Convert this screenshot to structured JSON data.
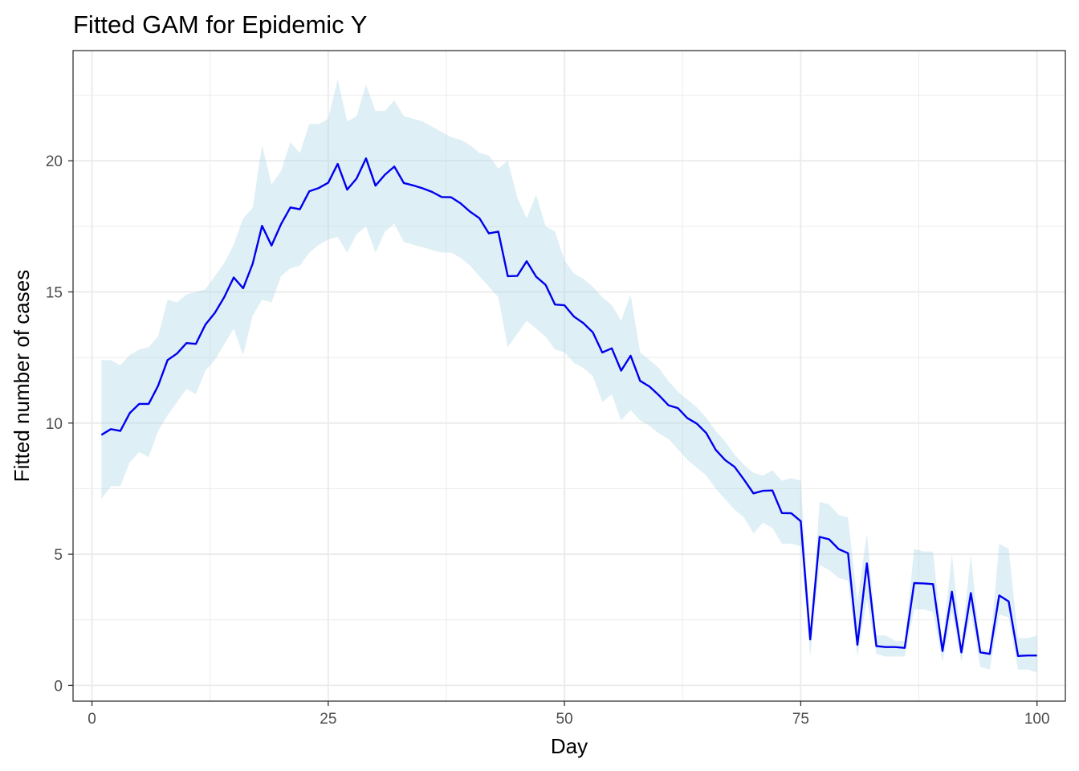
{
  "chart_data": {
    "type": "line",
    "title": "Fitted GAM for Epidemic Y",
    "xlabel": "Day",
    "ylabel": "Fitted number of cases",
    "xlim": [
      -2,
      103
    ],
    "ylim": [
      -0.6,
      24.2
    ],
    "x_ticks": [
      0,
      25,
      50,
      75,
      100
    ],
    "y_ticks": [
      0,
      5,
      10,
      15,
      20
    ],
    "grid": true,
    "legend": "none",
    "colors": {
      "line": "#0000ee",
      "ribbon": "#add8e6",
      "grid": "#ebebeb",
      "panel_border": "#333333"
    },
    "x": [
      1,
      2,
      3,
      4,
      5,
      6,
      7,
      8,
      9,
      10,
      11,
      12,
      13,
      14,
      15,
      16,
      17,
      18,
      19,
      20,
      21,
      22,
      23,
      24,
      25,
      26,
      27,
      28,
      29,
      30,
      31,
      32,
      33,
      34,
      35,
      36,
      37,
      38,
      39,
      40,
      41,
      42,
      43,
      44,
      45,
      46,
      47,
      48,
      49,
      50,
      51,
      52,
      53,
      54,
      55,
      56,
      57,
      58,
      59,
      60,
      61,
      62,
      63,
      64,
      65,
      66,
      67,
      68,
      69,
      70,
      71,
      72,
      73,
      74,
      75,
      76,
      77,
      78,
      79,
      80,
      81,
      82,
      83,
      84,
      85,
      86,
      87,
      88,
      89,
      90,
      91,
      92,
      93,
      94,
      95,
      96,
      97,
      98,
      99,
      100
    ],
    "series": [
      {
        "type": "ribbon",
        "lower": [
          7.1,
          7.6,
          7.6,
          8.5,
          8.9,
          8.7,
          9.7,
          10.3,
          10.8,
          11.3,
          11.1,
          12.0,
          12.4,
          13.0,
          13.6,
          12.6,
          14.1,
          14.7,
          14.6,
          15.6,
          15.9,
          16.0,
          16.5,
          16.8,
          17.0,
          17.1,
          16.5,
          17.2,
          17.5,
          16.5,
          17.3,
          17.6,
          16.9,
          16.8,
          16.7,
          16.6,
          16.5,
          16.5,
          16.3,
          16.0,
          15.6,
          15.2,
          14.8,
          12.9,
          13.4,
          13.9,
          13.6,
          13.3,
          12.8,
          12.7,
          12.3,
          12.1,
          11.8,
          10.8,
          11.1,
          10.1,
          10.5,
          10.1,
          9.9,
          9.6,
          9.4,
          9.0,
          8.6,
          8.3,
          8.0,
          7.5,
          7.1,
          6.7,
          6.4,
          5.8,
          6.2,
          6.0,
          5.4,
          5.4,
          5.3,
          1.1,
          4.6,
          4.4,
          4.1,
          4.0,
          1.1,
          3.3,
          1.2,
          1.1,
          1.1,
          1.1,
          2.9,
          2.9,
          2.8,
          0.9,
          2.8,
          0.9,
          2.8,
          0.7,
          0.6,
          2.7,
          2.6,
          0.6,
          0.6,
          0.5
        ],
        "upper": [
          12.4,
          12.4,
          12.2,
          12.6,
          12.8,
          12.9,
          13.3,
          14.7,
          14.6,
          14.9,
          15.0,
          15.1,
          15.6,
          16.1,
          16.8,
          17.8,
          18.2,
          20.6,
          19.1,
          19.6,
          20.7,
          20.3,
          21.4,
          21.4,
          21.6,
          23.1,
          21.5,
          21.7,
          22.9,
          21.9,
          21.9,
          22.3,
          21.7,
          21.6,
          21.5,
          21.3,
          21.1,
          20.9,
          20.8,
          20.6,
          20.3,
          20.2,
          19.7,
          20.0,
          18.6,
          17.8,
          18.7,
          17.5,
          17.3,
          16.2,
          15.7,
          15.5,
          15.2,
          14.8,
          14.5,
          13.9,
          14.9,
          12.7,
          12.4,
          12.1,
          11.6,
          11.2,
          10.9,
          10.6,
          10.2,
          9.7,
          9.3,
          8.8,
          8.4,
          8.1,
          8.0,
          8.2,
          7.8,
          7.9,
          7.8,
          1.8,
          7.0,
          6.9,
          6.5,
          6.4,
          3.2,
          5.8,
          1.9,
          1.9,
          1.7,
          1.7,
          5.2,
          5.1,
          5.1,
          1.6,
          5.0,
          1.5,
          5.0,
          1.4,
          1.3,
          5.4,
          5.2,
          1.8,
          1.8,
          1.9
        ]
      },
      {
        "type": "line",
        "values": [
          9.55,
          9.77,
          9.7,
          10.38,
          10.73,
          10.73,
          11.42,
          12.4,
          12.65,
          13.05,
          13.02,
          13.75,
          14.2,
          14.8,
          15.55,
          15.14,
          16.07,
          17.52,
          16.77,
          17.58,
          18.22,
          18.15,
          18.84,
          18.96,
          19.16,
          19.88,
          18.9,
          19.32,
          20.09,
          19.05,
          19.47,
          19.78,
          19.15,
          19.06,
          18.95,
          18.81,
          18.62,
          18.61,
          18.38,
          18.06,
          17.81,
          17.23,
          17.3,
          15.6,
          15.61,
          16.17,
          15.58,
          15.27,
          14.52,
          14.49,
          14.06,
          13.81,
          13.46,
          12.69,
          12.85,
          12.0,
          12.57,
          11.61,
          11.39,
          11.06,
          10.68,
          10.57,
          10.19,
          9.98,
          9.62,
          8.98,
          8.59,
          8.33,
          7.84,
          7.32,
          7.42,
          7.43,
          6.57,
          6.56,
          6.26,
          1.75,
          5.66,
          5.57,
          5.2,
          5.04,
          1.55,
          4.65,
          1.5,
          1.46,
          1.46,
          1.43,
          3.9,
          3.89,
          3.86,
          1.31,
          3.57,
          1.26,
          3.52,
          1.26,
          1.2,
          3.43,
          3.2,
          1.12,
          1.14,
          1.14
        ]
      }
    ]
  }
}
